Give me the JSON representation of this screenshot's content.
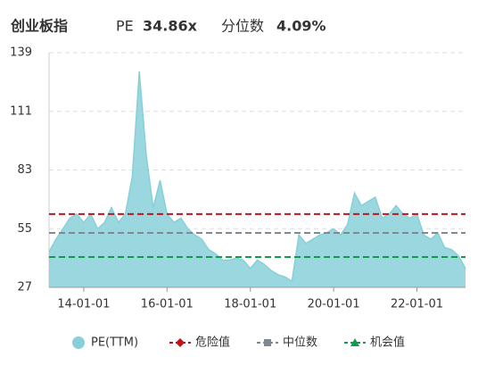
{
  "chart_data": {
    "type": "area",
    "title": "创业板指",
    "stats": [
      {
        "name": "PE",
        "text": "34.86x"
      },
      {
        "name": "分位数",
        "text": "4.09%"
      }
    ],
    "categories": [
      null,
      null,
      null,
      null,
      null,
      "14-01-01",
      null,
      null,
      null,
      null,
      null,
      null,
      null,
      null,
      null,
      null,
      null,
      "16-01-01",
      null,
      null,
      null,
      null,
      null,
      null,
      null,
      null,
      null,
      null,
      null,
      "18-01-01",
      null,
      null,
      null,
      null,
      null,
      null,
      null,
      null,
      null,
      null,
      null,
      "20-01-01",
      null,
      null,
      null,
      null,
      null,
      null,
      null,
      null,
      null,
      null,
      null,
      "22-01-01",
      null,
      null,
      null,
      null,
      null,
      null,
      null
    ],
    "series": [
      {
        "name": "PE(TTM)",
        "color": "#88d0d9",
        "values": [
          44,
          50,
          55,
          60,
          62,
          58,
          62,
          55,
          58,
          65,
          58,
          62,
          80,
          130,
          90,
          65,
          78,
          62,
          58,
          60,
          55,
          52,
          50,
          45,
          43,
          40,
          40,
          41,
          40,
          36,
          40,
          38,
          35,
          33,
          32,
          30,
          52,
          48,
          50,
          52,
          53,
          55,
          52,
          57,
          72,
          66,
          68,
          70,
          60,
          62,
          66,
          62,
          60,
          62,
          52,
          50,
          53,
          46,
          45,
          42,
          36
        ]
      }
    ],
    "reference_lines": [
      {
        "name": "危险值",
        "value": 62,
        "color": "#c0141b",
        "marker": "diamond"
      },
      {
        "name": "中位数",
        "value": 53,
        "color": "#808891",
        "marker": "square"
      },
      {
        "name": "机会值",
        "value": 41.5,
        "color": "#129b4a",
        "marker": "triangle"
      }
    ],
    "ylim": [
      27,
      139
    ],
    "yticks": [
      27,
      55,
      83,
      111,
      139
    ],
    "grid": true
  }
}
